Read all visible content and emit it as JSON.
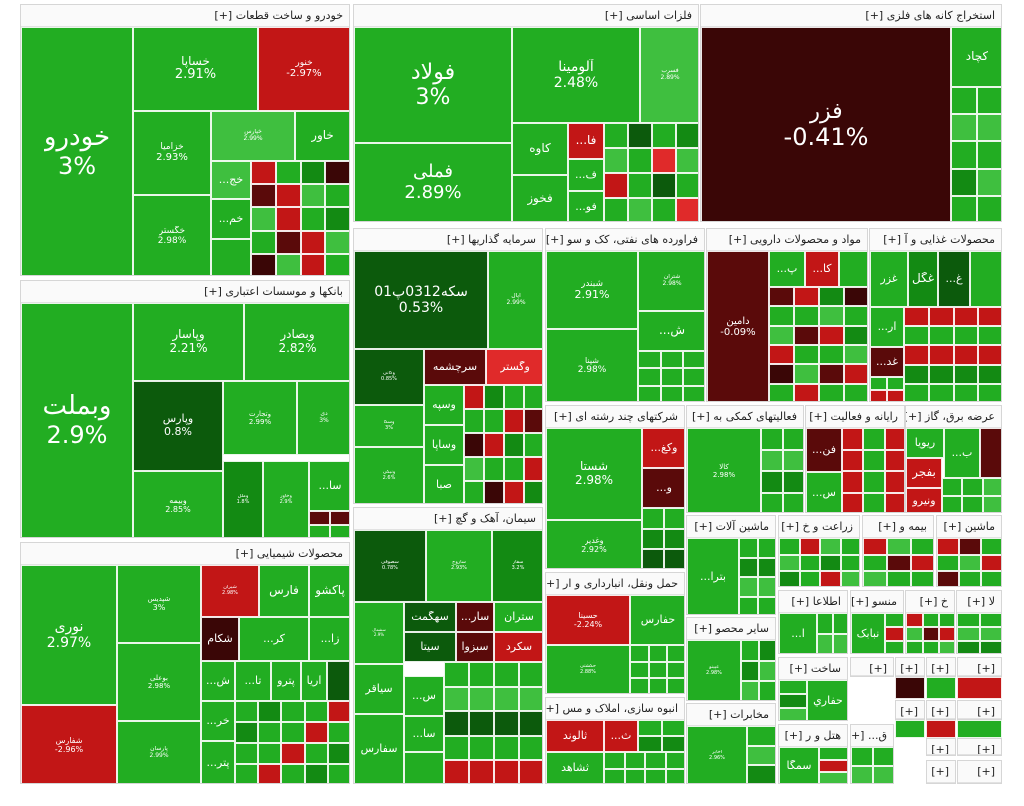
{
  "chart_data": {
    "type": "treemap",
    "sectors": [
      {
        "id": "auto",
        "title": "خودرو و ساخت قطعات [+]",
        "stocks": [
          {
            "name": "خودرو",
            "change": "3%"
          },
          {
            "name": "خساپا",
            "change": "2.91%"
          },
          {
            "name": "خنور",
            "change": "-2.97%"
          },
          {
            "name": "خزامیا",
            "change": "2.93%"
          },
          {
            "name": "خاور",
            "change": ""
          },
          {
            "name": "خگستر",
            "change": "2.98%"
          },
          {
            "name": "خج...",
            "change": ""
          },
          {
            "name": "خم...",
            "change": ""
          }
        ]
      },
      {
        "id": "metals",
        "title": "فلزات اساسی [+]",
        "stocks": [
          {
            "name": "فولاد",
            "change": "3%"
          },
          {
            "name": "آلومینا",
            "change": "2.48%"
          },
          {
            "name": "فملی",
            "change": "2.89%"
          },
          {
            "name": "کاوه",
            "change": ""
          },
          {
            "name": "فخوز",
            "change": ""
          },
          {
            "name": "فا...",
            "change": ""
          },
          {
            "name": "فو...",
            "change": ""
          },
          {
            "name": "ف...",
            "change": ""
          }
        ]
      },
      {
        "id": "mining",
        "title": "استخراج کانه های فلزی [+]",
        "stocks": [
          {
            "name": "فزر",
            "change": "-0.41%"
          },
          {
            "name": "کچاد",
            "change": ""
          }
        ]
      },
      {
        "id": "banks",
        "title": "بانکها و موسسات اعتباری [+]",
        "stocks": [
          {
            "name": "وبملت",
            "change": "2.9%"
          },
          {
            "name": "وپاسار",
            "change": "2.21%"
          },
          {
            "name": "وبصادر",
            "change": "2.82%"
          },
          {
            "name": "وپارس",
            "change": "0.8%"
          },
          {
            "name": "وتجارت",
            "change": "2.99%"
          },
          {
            "name": "وبیمه",
            "change": "2.85%"
          },
          {
            "name": "سا...",
            "change": ""
          }
        ]
      },
      {
        "id": "invest",
        "title": "سرمایه گذاریها [+]",
        "stocks": [
          {
            "name": "سکه0312پ01",
            "change": "0.53%"
          },
          {
            "name": "سرچشمه",
            "change": ""
          },
          {
            "name": "وگستر",
            "change": ""
          },
          {
            "name": "وسپه",
            "change": ""
          },
          {
            "name": "وساپا",
            "change": ""
          },
          {
            "name": "صبا",
            "change": ""
          }
        ]
      },
      {
        "id": "oil",
        "title": "فراورده های نفتی، کک و سو [+]",
        "stocks": [
          {
            "name": "شبندر",
            "change": "2.91%"
          },
          {
            "name": "شپنا",
            "change": "2.98%"
          },
          {
            "name": "ش...",
            "change": ""
          }
        ]
      },
      {
        "id": "pharma",
        "title": "مواد و محصولات دارویی [+]",
        "stocks": [
          {
            "name": "دامین",
            "change": "-0.09%"
          },
          {
            "name": "کا...",
            "change": ""
          },
          {
            "name": "پ...",
            "change": ""
          }
        ]
      },
      {
        "id": "food",
        "title": "محصولات غذایی و آ [+]",
        "stocks": [
          {
            "name": "غزر",
            "change": ""
          },
          {
            "name": "غگل",
            "change": ""
          },
          {
            "name": "غ...",
            "change": ""
          },
          {
            "name": "آر...",
            "change": ""
          },
          {
            "name": "غد...",
            "change": ""
          }
        ]
      },
      {
        "id": "multi",
        "title": "شرکتهای چند رشته ای [+]",
        "stocks": [
          {
            "name": "شستا",
            "change": "2.98%"
          },
          {
            "name": "وکغ...",
            "change": ""
          },
          {
            "name": "و...",
            "change": ""
          },
          {
            "name": "وغدیر",
            "change": "2.92%"
          }
        ]
      },
      {
        "id": "support",
        "title": "فعالیتهای کمکی به [+]",
        "stocks": [
          {
            "name": "کالا",
            "change": "2.98%"
          }
        ]
      },
      {
        "id": "rayaneh",
        "title": "رایانه و فعالیت [+]",
        "stocks": [
          {
            "name": "فن...",
            "change": ""
          },
          {
            "name": "س...",
            "change": ""
          }
        ]
      },
      {
        "id": "power",
        "title": "عرضه برق، گاز [+]",
        "stocks": [
          {
            "name": "ریویا",
            "change": ""
          },
          {
            "name": "بفجر",
            "change": ""
          },
          {
            "name": "ب...",
            "change": ""
          },
          {
            "name": "ونیرو",
            "change": ""
          }
        ]
      },
      {
        "id": "chem",
        "title": "محصولات شیمیایی [+]",
        "stocks": [
          {
            "name": "نوری",
            "change": "2.97%"
          },
          {
            "name": "شپدیس",
            "change": "3%"
          },
          {
            "name": "فارس",
            "change": ""
          },
          {
            "name": "پاکشو",
            "change": ""
          },
          {
            "name": "شفارس",
            "change": "-2.96%"
          },
          {
            "name": "شکام",
            "change": ""
          },
          {
            "name": "کر...",
            "change": ""
          },
          {
            "name": "زا...",
            "change": ""
          },
          {
            "name": "پترو",
            "change": ""
          },
          {
            "name": "آریا",
            "change": ""
          },
          {
            "name": "ش...",
            "change": ""
          },
          {
            "name": "تا...",
            "change": ""
          },
          {
            "name": "خر...",
            "change": ""
          },
          {
            "name": "پتر...",
            "change": ""
          },
          {
            "name": "بوعلی",
            "change": "2.98%"
          },
          {
            "name": "پارسان",
            "change": "2.99%"
          }
        ]
      },
      {
        "id": "cement",
        "title": "سیمان، آهک و گچ [+]",
        "stocks": [
          {
            "name": "سهگمت",
            "change": ""
          },
          {
            "name": "سار...",
            "change": ""
          },
          {
            "name": "ستران",
            "change": ""
          },
          {
            "name": "سیتا",
            "change": ""
          },
          {
            "name": "سبزوا",
            "change": ""
          },
          {
            "name": "سکرد",
            "change": ""
          },
          {
            "name": "سیاقر",
            "change": ""
          },
          {
            "name": "سفارس",
            "change": ""
          },
          {
            "name": "سا...",
            "change": ""
          },
          {
            "name": "س...",
            "change": ""
          }
        ]
      },
      {
        "id": "transport",
        "title": "حمل ونقل، انبارداری و ار [+]",
        "stocks": [
          {
            "name": "حسینا",
            "change": "-2.24%"
          },
          {
            "name": "حفارس",
            "change": ""
          }
        ]
      },
      {
        "id": "machinery",
        "title": "ماشین آلات [+]",
        "stocks": [
          {
            "name": "بترا...",
            "change": ""
          }
        ]
      },
      {
        "id": "agri",
        "title": "زراعت و خ [+]",
        "stocks": []
      },
      {
        "id": "insurance",
        "title": "بیمه و [+]",
        "stocks": []
      },
      {
        "id": "machine2",
        "title": "ماشین [+]",
        "stocks": []
      },
      {
        "id": "otherfood",
        "title": "سایر محصو [+]",
        "stocks": []
      },
      {
        "id": "info",
        "title": "اطلاعا [+]",
        "stocks": []
      },
      {
        "id": "textile",
        "title": "منسو [+]",
        "stocks": [
          {
            "name": "نبابک",
            "change": ""
          }
        ]
      },
      {
        "id": "kh",
        "title": "خ [+]",
        "stocks": []
      },
      {
        "id": "la",
        "title": "لا [+]",
        "stocks": []
      },
      {
        "id": "construction",
        "title": "ساخت [+]",
        "stocks": [
          {
            "name": "حفاري",
            "change": ""
          }
        ]
      },
      {
        "id": "realestate",
        "title": "انبوه سازی، املاک و مس [+]",
        "stocks": [
          {
            "name": "ثالوند",
            "change": ""
          },
          {
            "name": "ثشاهد",
            "change": ""
          },
          {
            "name": "ث...",
            "change": ""
          }
        ]
      },
      {
        "id": "telecom",
        "title": "مخابرات [+]",
        "stocks": []
      },
      {
        "id": "hotel",
        "title": "هتل و ر [+]",
        "stocks": [
          {
            "name": "سمگا",
            "change": ""
          }
        ]
      },
      {
        "id": "gh",
        "title": "ق... [+]",
        "stocks": []
      }
    ],
    "small_headers": [
      "[+]",
      "[+]",
      "[+]",
      "[+]",
      "[+]",
      "[+]",
      "[+]",
      "[+]",
      "[+]",
      "[+]",
      "[+]"
    ],
    "colors": {
      "strong_green": "#22ad22",
      "light_green": "#3fbf3f",
      "mid_green": "#138a13",
      "dark_green": "#0c5a0c",
      "red": "#c21616",
      "dark_red": "#3a0606",
      "maroon": "#5a0a0a",
      "light_red": "#e02a2a"
    }
  }
}
